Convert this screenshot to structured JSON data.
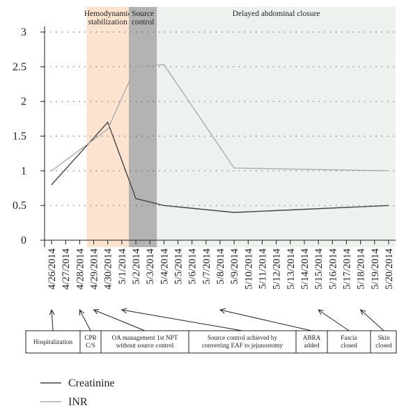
{
  "chart_data": {
    "type": "line",
    "ylim": [
      0,
      3
    ],
    "yticks": [
      "0",
      "0.5",
      "1",
      "1.5",
      "2",
      "2.5",
      "3"
    ],
    "categories": [
      "4/26/2014",
      "4/27/2014",
      "4/28/2014",
      "4/29/2014",
      "4/30/2014",
      "5/1/2014",
      "5/2/2014",
      "5/3/2014",
      "5/4/2014",
      "5/5/2014",
      "5/6/2014",
      "5/7/2014",
      "5/8/2014",
      "5/9/2014",
      "5/10/2014",
      "5/11/2014",
      "5/12/2014",
      "5/13/2014",
      "5/14/2014",
      "5/15/2014",
      "5/16/2014",
      "5/17/2014",
      "5/18/2014",
      "5/19/2014",
      "5/20/2014"
    ],
    "series": [
      {
        "name": "Creatinine",
        "color": "#444444",
        "points": [
          [
            "4/26/2014",
            0.8
          ],
          [
            "4/30/2014",
            1.7
          ],
          [
            "5/2/2014",
            0.6
          ],
          [
            "5/4/2014",
            0.5
          ],
          [
            "5/9/2014",
            0.4
          ],
          [
            "5/20/2014",
            0.5
          ]
        ]
      },
      {
        "name": "INR",
        "color": "#aaaaaa",
        "points": [
          [
            "4/26/2014",
            1.0
          ],
          [
            "4/30/2014",
            1.6
          ],
          [
            "5/2/2014",
            2.5
          ],
          [
            "5/4/2014",
            2.53
          ],
          [
            "5/9/2014",
            1.04
          ],
          [
            "5/20/2014",
            1.0
          ]
        ]
      }
    ],
    "bands": [
      {
        "label_lines": [
          "Hemodynamic",
          "stabilization"
        ],
        "from": 2.5,
        "to": 5.5,
        "color": "#fbe3d0"
      },
      {
        "label_lines": [
          "Source",
          "control"
        ],
        "from": 5.5,
        "to": 7.5,
        "color": "#b3b3b3"
      },
      {
        "label_lines": [
          "Delayed abdominal closure"
        ],
        "from": 7.5,
        "to": 24.5,
        "color": "#eef2ee"
      }
    ],
    "grid": "dotted horizontal",
    "events": [
      {
        "lines": [
          "Hospitalization"
        ],
        "date": "4/26/2014"
      },
      {
        "lines": [
          "CPR",
          "C/S"
        ],
        "date": "4/28/2014"
      },
      {
        "lines": [
          "OA management 1st NPT",
          "without source control"
        ],
        "date": "4/29/2014"
      },
      {
        "lines": [
          "Source control achieved by",
          "converting EAF to jejunostomy"
        ],
        "date": "5/1/2014"
      },
      {
        "lines": [
          "ABRA",
          "added"
        ],
        "date": "5/8/2014"
      },
      {
        "lines": [
          "Fascia",
          "closed"
        ],
        "date": "5/15/2014"
      },
      {
        "lines": [
          "Skin",
          "closed"
        ],
        "date": "5/18/2014"
      }
    ],
    "legend": [
      {
        "label": "Creatinine",
        "color": "#444444"
      },
      {
        "label": "INR",
        "color": "#aaaaaa"
      }
    ]
  }
}
